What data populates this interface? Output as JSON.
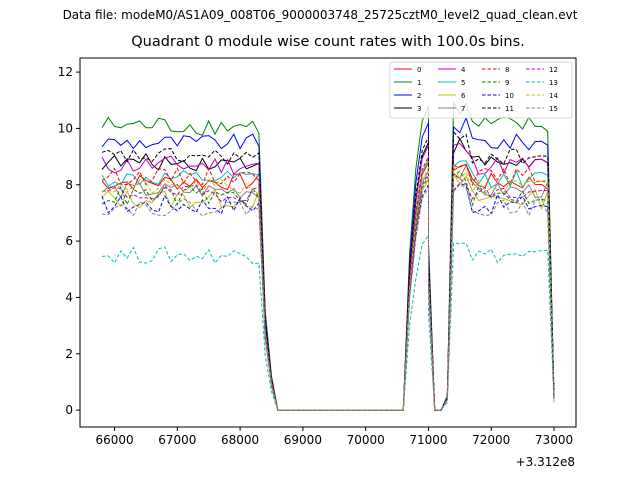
{
  "figure": {
    "suptitle": "Data file: modeM0/AS1A09_008T06_9000003748_25725cztM0_level2_quad_clean.evt",
    "title": "Quadrant 0 module wise count rates with 100.0s bins."
  },
  "chart_data": {
    "type": "line",
    "title": "Quadrant 0 module wise count rates with 100.0s bins.",
    "xlabel": "",
    "ylabel": "",
    "x_offset_text": "+3.312e8",
    "xlim": [
      65450,
      73350
    ],
    "ylim": [
      -0.6,
      12.5
    ],
    "xticks": [
      66000,
      67000,
      68000,
      69000,
      70000,
      71000,
      72000,
      73000
    ],
    "xtick_labels": [
      "66000",
      "67000",
      "68000",
      "69000",
      "70000",
      "71000",
      "72000",
      "73000"
    ],
    "yticks": [
      0,
      2,
      4,
      6,
      8,
      10,
      12
    ],
    "ytick_labels": [
      "0",
      "2",
      "4",
      "6",
      "8",
      "10",
      "12"
    ],
    "grid": false,
    "legend_position": "top-right",
    "segments": [
      {
        "start": 65800,
        "step": 100,
        "count": 26
      },
      {
        "start": 68400,
        "step": 100,
        "count": 3,
        "ramp": [
          0.35,
          0.12,
          0.0
        ]
      },
      {
        "start": 68700,
        "step": 100,
        "count": 19,
        "zero": true
      },
      {
        "start": 70600,
        "step": 100,
        "count": 5,
        "ramp": [
          0.0,
          0.55,
          0.85,
          0.95,
          1.0
        ]
      },
      {
        "start": 71000,
        "step": 100,
        "count": 4,
        "ramp": [
          0.55,
          0.0,
          0.0,
          0.05
        ]
      },
      {
        "start": 71400,
        "step": 100,
        "count": 16
      },
      {
        "start": 73000,
        "step": 100,
        "count": 1,
        "ramp": [
          0.05
        ]
      }
    ],
    "series": [
      {
        "name": "0",
        "color": "#ff0000",
        "style": "solid",
        "level": 8.1,
        "amp": 0.3
      },
      {
        "name": "1",
        "color": "#008000",
        "style": "solid",
        "level": 10.1,
        "amp": 0.35
      },
      {
        "name": "2",
        "color": "#0000ff",
        "style": "solid",
        "level": 9.5,
        "amp": 0.3
      },
      {
        "name": "3",
        "color": "#000000",
        "style": "solid",
        "level": 8.8,
        "amp": 0.3
      },
      {
        "name": "4",
        "color": "#c000c0",
        "style": "solid",
        "level": 8.7,
        "amp": 0.35
      },
      {
        "name": "5",
        "color": "#00bfbf",
        "style": "solid",
        "level": 8.2,
        "amp": 0.3
      },
      {
        "name": "6",
        "color": "#bfbf00",
        "style": "solid",
        "level": 7.5,
        "amp": 0.35
      },
      {
        "name": "7",
        "color": "#808080",
        "style": "solid",
        "level": 7.8,
        "amp": 0.3
      },
      {
        "name": "8",
        "color": "#ff0000",
        "style": "dashed",
        "level": 8.3,
        "amp": 0.3
      },
      {
        "name": "9",
        "color": "#008000",
        "style": "dashed",
        "level": 7.6,
        "amp": 0.35
      },
      {
        "name": "10",
        "color": "#0000ff",
        "style": "dashed",
        "level": 7.3,
        "amp": 0.35
      },
      {
        "name": "11",
        "color": "#000000",
        "style": "dashed",
        "level": 9.0,
        "amp": 0.3
      },
      {
        "name": "12",
        "color": "#c000c0",
        "style": "dashed",
        "level": 7.7,
        "amp": 0.3
      },
      {
        "name": "13",
        "color": "#00bfbf",
        "style": "dashed",
        "level": 5.5,
        "amp": 0.3
      },
      {
        "name": "14",
        "color": "#bfbf00",
        "style": "dashed",
        "level": 7.9,
        "amp": 0.3
      },
      {
        "name": "15",
        "color": "#808080",
        "style": "dashed",
        "level": 7.2,
        "amp": 0.3
      }
    ]
  }
}
